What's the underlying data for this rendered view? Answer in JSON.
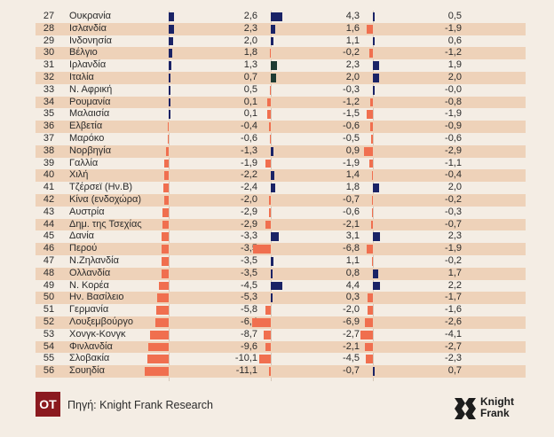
{
  "colors": {
    "positive": "#1a2366",
    "negative": "#f06f4f",
    "dark_green": "#1f3b33",
    "row_alt": "#eed2b9",
    "background": "#f4ede4"
  },
  "chart_data": {
    "type": "table",
    "columns": [
      "rank",
      "country",
      "value_1",
      "value_2",
      "value_3"
    ],
    "rows": [
      {
        "rank": "27",
        "country": "Ουκρανία",
        "v1": "2,6",
        "v2": "4,3",
        "v3": "0,5"
      },
      {
        "rank": "28",
        "country": "Ισλανδία",
        "v1": "2,3",
        "v2": "1,6",
        "v3": "-1,9"
      },
      {
        "rank": "29",
        "country": "Ινδονησία",
        "v1": "2,0",
        "v2": "1,1",
        "v3": "0,6"
      },
      {
        "rank": "30",
        "country": "Βέλγιο",
        "v1": "1,8",
        "v2": "-0,2",
        "v3": "-1,2"
      },
      {
        "rank": "31",
        "country": "Ιρλανδία",
        "v1": "1,3",
        "v2": "2,3",
        "v3": "1,9"
      },
      {
        "rank": "32",
        "country": "Ιταλία",
        "v1": "0,7",
        "v2": "2,0",
        "v3": "2,0"
      },
      {
        "rank": "33",
        "country": "Ν. Αφρική",
        "v1": "0,5",
        "v2": "-0,3",
        "v3": "-0,0"
      },
      {
        "rank": "34",
        "country": "Ρουμανία",
        "v1": "0,1",
        "v2": "-1,2",
        "v3": "-0,8"
      },
      {
        "rank": "35",
        "country": "Μαλαισία",
        "v1": "0,1",
        "v2": "-1,5",
        "v3": "-1,9"
      },
      {
        "rank": "36",
        "country": "Ελβετία",
        "v1": "-0,4",
        "v2": "-0,6",
        "v3": "-0,9"
      },
      {
        "rank": "37",
        "country": "Μαρόκο",
        "v1": "-0,6",
        "v2": "-0,5",
        "v3": "-0,6"
      },
      {
        "rank": "38",
        "country": "Νορβηγία",
        "v1": "-1,3",
        "v2": "0,9",
        "v3": "-2,9"
      },
      {
        "rank": "39",
        "country": "Γαλλία",
        "v1": "-1,9",
        "v2": "-1,9",
        "v3": "-1,1"
      },
      {
        "rank": "40",
        "country": "Χιλή",
        "v1": "-2,2",
        "v2": "1,4",
        "v3": "-0,4"
      },
      {
        "rank": "41",
        "country": "Τζέρσεϊ (Ην.Β)",
        "v1": "-2,4",
        "v2": "1,8",
        "v3": "2,0"
      },
      {
        "rank": "42",
        "country": "Κίνα (ενδοχώρα)",
        "v1": "-2,0",
        "v2": "-0,7",
        "v3": "-0,2"
      },
      {
        "rank": "43",
        "country": "Αυστρία",
        "v1": "-2,9",
        "v2": "-0,6",
        "v3": "-0,3"
      },
      {
        "rank": "44",
        "country": "Δημ. της Τσεχίας",
        "v1": "-2,9",
        "v2": "-2,1",
        "v3": "-0,7"
      },
      {
        "rank": "45",
        "country": "Δανία",
        "v1": "-3,3",
        "v2": "3,1",
        "v3": "2,3"
      },
      {
        "rank": "46",
        "country": "Περού",
        "v1": "-3,5",
        "v2": "-6,8",
        "v3": "-1,9"
      },
      {
        "rank": "47",
        "country": "Ν.Ζηλανδία",
        "v1": "-3,5",
        "v2": "1,1",
        "v3": "-0,2"
      },
      {
        "rank": "48",
        "country": "Ολλανδία",
        "v1": "-3,5",
        "v2": "0,8",
        "v3": "1,7"
      },
      {
        "rank": "49",
        "country": "Ν. Κορέα",
        "v1": "-4,5",
        "v2": "4,4",
        "v3": "2,2"
      },
      {
        "rank": "50",
        "country": "Ην. Βασίλειο",
        "v1": "-5,3",
        "v2": "0,3",
        "v3": "-1,7"
      },
      {
        "rank": "51",
        "country": "Γερμανία",
        "v1": "-5,8",
        "v2": "-2,0",
        "v3": "-1,6"
      },
      {
        "rank": "52",
        "country": "Λουξεμβούργο",
        "v1": "-6,4",
        "v2": "-6,9",
        "v3": "-2,6"
      },
      {
        "rank": "53",
        "country": "Χονγκ-Κονγκ",
        "v1": "-8,7",
        "v2": "-2,7",
        "v3": "-4,1"
      },
      {
        "rank": "54",
        "country": "Φινλανδία",
        "v1": "-9,6",
        "v2": "-2,1",
        "v3": "-2,7"
      },
      {
        "rank": "55",
        "country": "Σλοβακία",
        "v1": "-10,1",
        "v2": "-4,5",
        "v3": "-2,3"
      },
      {
        "rank": "56",
        "country": "Σουηδία",
        "v1": "-11,1",
        "v2": "-0,7",
        "v3": "0,7"
      }
    ]
  },
  "footer": {
    "logo_text": "OT",
    "source": "Πηγή: Knight Frank Research",
    "brand_line1": "Knight",
    "brand_line2": "Frank"
  }
}
